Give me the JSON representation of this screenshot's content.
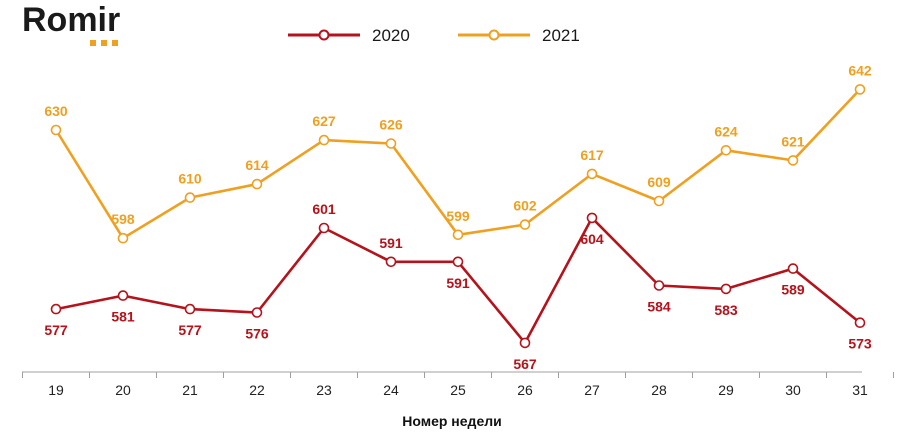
{
  "logo": {
    "text": "Romir",
    "accent_color": "#f0a020"
  },
  "chart_data": {
    "type": "line",
    "x": [
      19,
      20,
      21,
      22,
      23,
      24,
      25,
      26,
      27,
      28,
      29,
      30,
      31
    ],
    "xlabel": "Номер недели",
    "ylabel": "",
    "series": [
      {
        "name": "2020",
        "color": "#b5121b",
        "values": [
          577,
          581,
          577,
          576,
          601,
          591,
          591,
          567,
          604,
          584,
          583,
          589,
          573
        ],
        "label_position": [
          "below",
          "below",
          "below",
          "below",
          "above",
          "above",
          "below",
          "below",
          "below",
          "below",
          "below",
          "below",
          "below"
        ]
      },
      {
        "name": "2021",
        "color": "#f0a020",
        "values": [
          630,
          598,
          610,
          614,
          627,
          626,
          599,
          602,
          617,
          609,
          624,
          621,
          642
        ],
        "label_position": [
          "above",
          "above",
          "above",
          "above",
          "above",
          "above",
          "above",
          "above",
          "above",
          "above",
          "above",
          "above",
          "above"
        ]
      }
    ],
    "legend_position": "top-center",
    "grid": false
  }
}
